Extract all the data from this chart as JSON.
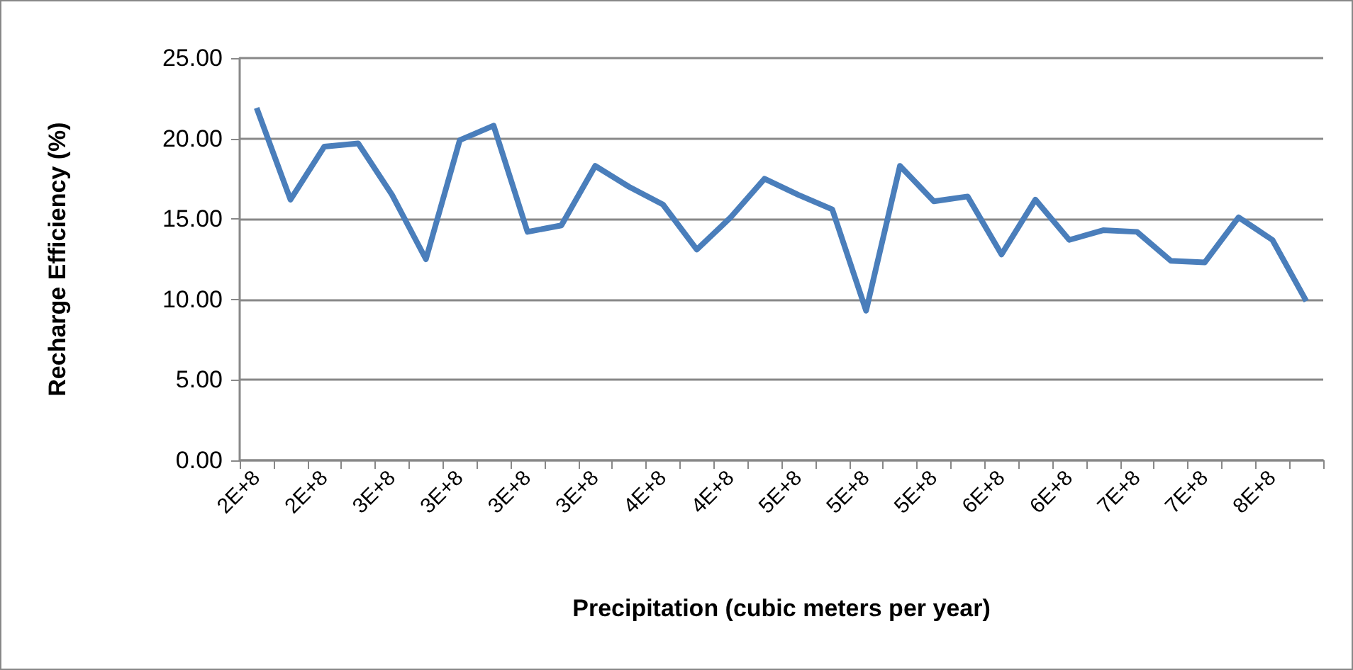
{
  "chart_data": {
    "type": "line",
    "xlabel": "Precipitation (cubic meters per year)",
    "ylabel": "Recharge Efficiency (%)",
    "categories": [
      "2E+8",
      null,
      "2E+8",
      null,
      "3E+8",
      null,
      "3E+8",
      null,
      "3E+8",
      null,
      "3E+8",
      null,
      "4E+8",
      null,
      "4E+8",
      null,
      "5E+8",
      null,
      "5E+8",
      null,
      "5E+8",
      null,
      "6E+8",
      null,
      "6E+8",
      null,
      "7E+8",
      null,
      "7E+8",
      null,
      "8E+8",
      null
    ],
    "series": [
      {
        "color": "#4a7ebb",
        "values": [
          21.9,
          16.2,
          19.5,
          19.7,
          16.5,
          12.5,
          19.9,
          20.8,
          14.2,
          14.6,
          18.3,
          17.0,
          15.9,
          13.1,
          15.1,
          17.5,
          16.5,
          15.6,
          9.3,
          18.3,
          16.1,
          16.4,
          12.8,
          16.2,
          13.7,
          14.3,
          14.2,
          12.4,
          12.3,
          15.1,
          13.7,
          9.9
        ]
      }
    ],
    "ylim": [
      0,
      25
    ],
    "yticks": [
      {
        "value": 0,
        "label": "0.00"
      },
      {
        "value": 5,
        "label": "5.00"
      },
      {
        "value": 10,
        "label": "10.00"
      },
      {
        "value": 15,
        "label": "15.00"
      },
      {
        "value": 20,
        "label": "20.00"
      },
      {
        "value": 25,
        "label": "25.00"
      }
    ],
    "grid": "y",
    "marker": "none",
    "line_style": "solid"
  }
}
